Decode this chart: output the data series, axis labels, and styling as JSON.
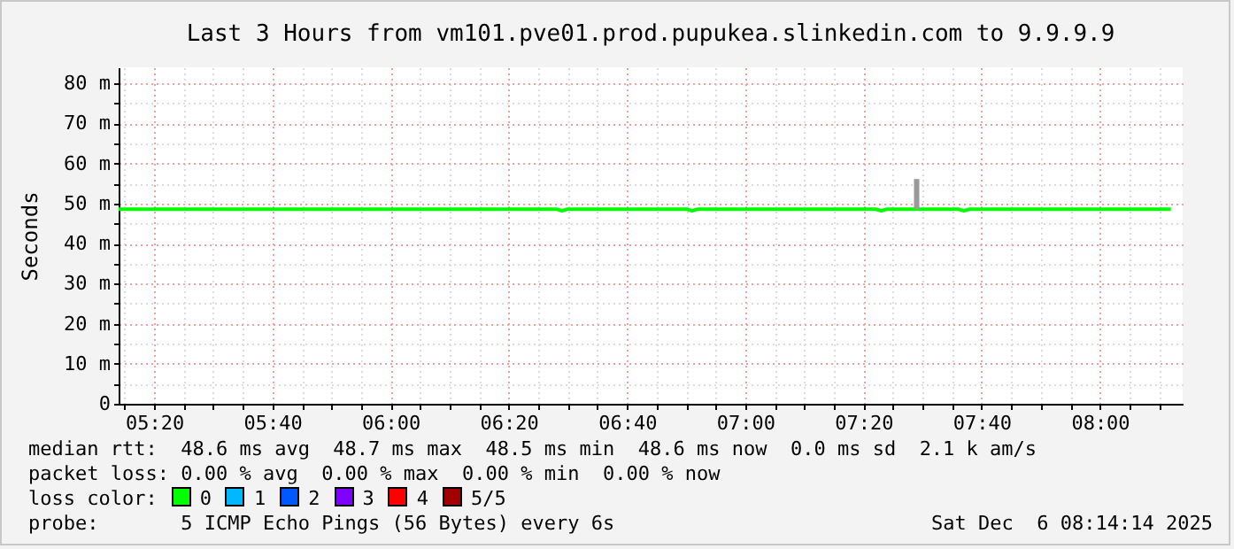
{
  "chart_data": {
    "type": "line",
    "title": "Last 3 Hours from vm101.pve01.prod.pupukea.slinkedin.com to 9.9.9.9",
    "ylabel": "Seconds",
    "series": [
      {
        "color": "#00ff00",
        "x": [
          "2025-12-06T05:14",
          "2025-12-06T06:28",
          "2025-12-06T06:29",
          "2025-12-06T06:30",
          "2025-12-06T06:50",
          "2025-12-06T06:51",
          "2025-12-06T06:52",
          "2025-12-06T07:22",
          "2025-12-06T07:23",
          "2025-12-06T07:24",
          "2025-12-06T07:36",
          "2025-12-06T07:37",
          "2025-12-06T07:38",
          "2025-12-06T08:12"
        ],
        "values": [
          48.6,
          48.6,
          48.2,
          48.6,
          48.6,
          48.2,
          48.6,
          48.6,
          48.2,
          48.6,
          48.6,
          48.2,
          48.6,
          48.6
        ]
      },
      {
        "color": "#999999",
        "x": [
          "2025-12-06T07:29",
          "2025-12-06T07:29"
        ],
        "values": [
          48.6,
          56.1
        ]
      }
    ],
    "xlim": [
      "2025-12-06T05:14",
      "2025-12-06T08:14"
    ],
    "xticks": [
      {
        "value": "2025-12-06T05:15",
        "label": null
      },
      {
        "value": "2025-12-06T05:20",
        "label": "05:20"
      },
      {
        "value": "2025-12-06T05:25",
        "label": null
      },
      {
        "value": "2025-12-06T05:30",
        "label": null
      },
      {
        "value": "2025-12-06T05:35",
        "label": null
      },
      {
        "value": "2025-12-06T05:40",
        "label": "05:40"
      },
      {
        "value": "2025-12-06T05:45",
        "label": null
      },
      {
        "value": "2025-12-06T05:50",
        "label": null
      },
      {
        "value": "2025-12-06T05:55",
        "label": null
      },
      {
        "value": "2025-12-06T06:00",
        "label": "06:00"
      },
      {
        "value": "2025-12-06T06:05",
        "label": null
      },
      {
        "value": "2025-12-06T06:10",
        "label": null
      },
      {
        "value": "2025-12-06T06:15",
        "label": null
      },
      {
        "value": "2025-12-06T06:20",
        "label": "06:20"
      },
      {
        "value": "2025-12-06T06:25",
        "label": null
      },
      {
        "value": "2025-12-06T06:30",
        "label": null
      },
      {
        "value": "2025-12-06T06:35",
        "label": null
      },
      {
        "value": "2025-12-06T06:40",
        "label": "06:40"
      },
      {
        "value": "2025-12-06T06:45",
        "label": null
      },
      {
        "value": "2025-12-06T06:50",
        "label": null
      },
      {
        "value": "2025-12-06T06:55",
        "label": null
      },
      {
        "value": "2025-12-06T07:00",
        "label": "07:00"
      },
      {
        "value": "2025-12-06T07:05",
        "label": null
      },
      {
        "value": "2025-12-06T07:10",
        "label": null
      },
      {
        "value": "2025-12-06T07:15",
        "label": null
      },
      {
        "value": "2025-12-06T07:20",
        "label": "07:20"
      },
      {
        "value": "2025-12-06T07:25",
        "label": null
      },
      {
        "value": "2025-12-06T07:30",
        "label": null
      },
      {
        "value": "2025-12-06T07:35",
        "label": null
      },
      {
        "value": "2025-12-06T07:40",
        "label": "07:40"
      },
      {
        "value": "2025-12-06T07:45",
        "label": null
      },
      {
        "value": "2025-12-06T07:50",
        "label": null
      },
      {
        "value": "2025-12-06T07:55",
        "label": null
      },
      {
        "value": "2025-12-06T08:00",
        "label": "08:00"
      },
      {
        "value": "2025-12-06T08:05",
        "label": null
      },
      {
        "value": "2025-12-06T08:10",
        "label": null
      }
    ],
    "ylim": [
      0,
      84
    ],
    "yticks": [
      0,
      {
        "value": 5,
        "label": null
      },
      {
        "value": 10,
        "label": "10 m"
      },
      {
        "value": 15,
        "label": null
      },
      {
        "value": 20,
        "label": "20 m"
      },
      {
        "value": 25,
        "label": null
      },
      {
        "value": 30,
        "label": "30 m"
      },
      {
        "value": 35,
        "label": null
      },
      {
        "value": 40,
        "label": "40 m"
      },
      {
        "value": 45,
        "label": null
      },
      {
        "value": 50,
        "label": "50 m"
      },
      {
        "value": 55,
        "label": null
      },
      {
        "value": 60,
        "label": "60 m"
      },
      {
        "value": 65,
        "label": null
      },
      {
        "value": 70,
        "label": "70 m"
      },
      {
        "value": 75,
        "label": null
      },
      {
        "value": 80,
        "label": "80 m"
      }
    ],
    "grid": true,
    "annotations": [
      "median rtt:  48.6 ms avg  48.7 ms max  48.5 ms min  48.6 ms now  0.0 ms sd  2.1 k am/s",
      "packet loss: 0.00 % avg  0.00 % max  0.00 % min  0.00 % now",
      "loss color:",
      "0",
      "1",
      "2",
      "3",
      "4",
      "5/5",
      "probe:       5 ICMP Echo Pings (56 Bytes) every 6s",
      "Sat Dec  6 08:14:14 2025"
    ]
  }
}
